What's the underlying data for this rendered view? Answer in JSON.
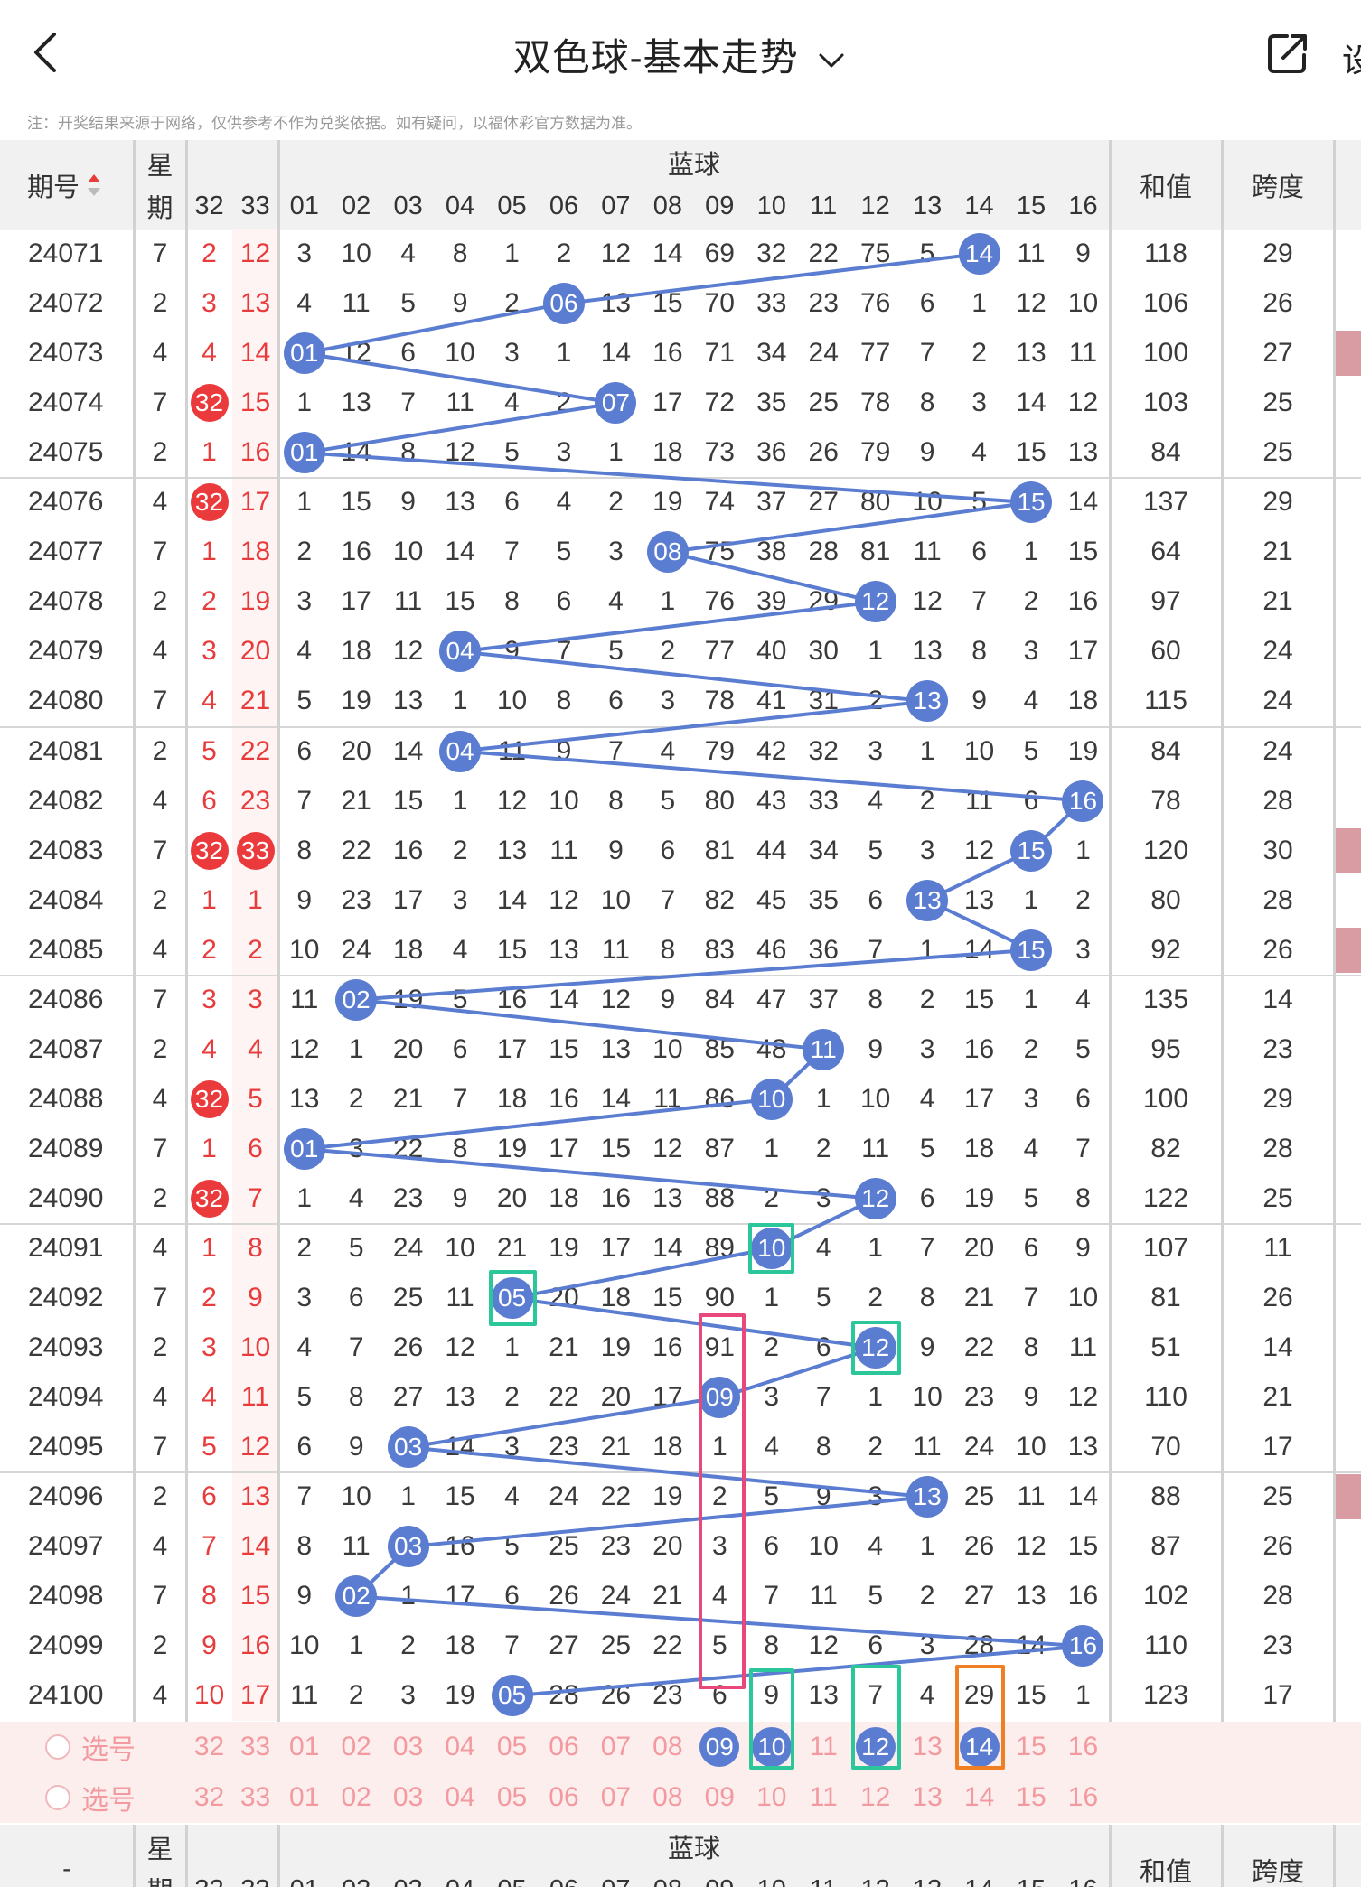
{
  "nav": {
    "title": "双色球-基本走势",
    "right_text": "设"
  },
  "note": "注：开奖结果来源于网络，仅供参考不作为兑奖依据。如有疑问，以福体彩官方数据为准。",
  "header": {
    "issue": "期号",
    "week_top": "星",
    "week_bottom": "期",
    "blue": "蓝球",
    "sum": "和值",
    "span": "跨度",
    "red_cols": [
      "32",
      "33"
    ],
    "blue_cols": [
      "01",
      "02",
      "03",
      "04",
      "05",
      "06",
      "07",
      "08",
      "09",
      "10",
      "11",
      "12",
      "13",
      "14",
      "15",
      "16"
    ]
  },
  "footer_header": {
    "issue": "-",
    "week_top": "星",
    "week_bottom": "期",
    "blue": "蓝球",
    "sum": "和值",
    "span": "跨度"
  },
  "select": {
    "label": "选号",
    "nums": [
      "32",
      "33",
      "01",
      "02",
      "03",
      "04",
      "05",
      "06",
      "07",
      "08",
      "09",
      "10",
      "11",
      "12",
      "13",
      "14",
      "15",
      "16"
    ]
  },
  "rows": [
    {
      "issue": "24071",
      "week": "7",
      "r32": "2",
      "r33": "12",
      "blue": 14,
      "cells": [
        "3",
        "10",
        "4",
        "8",
        "1",
        "2",
        "12",
        "14",
        "69",
        "32",
        "22",
        "75",
        "5",
        "14",
        "11",
        "9"
      ],
      "sum": "118",
      "span": "29"
    },
    {
      "issue": "24072",
      "week": "2",
      "r32": "3",
      "r33": "13",
      "blue": 6,
      "cells": [
        "4",
        "11",
        "5",
        "9",
        "2",
        "06",
        "13",
        "15",
        "70",
        "33",
        "23",
        "76",
        "6",
        "1",
        "12",
        "10"
      ],
      "sum": "106",
      "span": "26"
    },
    {
      "issue": "24073",
      "week": "4",
      "r32": "4",
      "r33": "14",
      "blue": 1,
      "cells": [
        "01",
        "12",
        "6",
        "10",
        "3",
        "1",
        "14",
        "16",
        "71",
        "34",
        "24",
        "77",
        "7",
        "2",
        "13",
        "11"
      ],
      "sum": "100",
      "span": "27"
    },
    {
      "issue": "24074",
      "week": "7",
      "r32": "32",
      "r33": "15",
      "blue": 7,
      "cells": [
        "1",
        "13",
        "7",
        "11",
        "4",
        "2",
        "07",
        "17",
        "72",
        "35",
        "25",
        "78",
        "8",
        "3",
        "14",
        "12"
      ],
      "sum": "103",
      "span": "25"
    },
    {
      "issue": "24075",
      "week": "2",
      "r32": "1",
      "r33": "16",
      "blue": 1,
      "cells": [
        "01",
        "14",
        "8",
        "12",
        "5",
        "3",
        "1",
        "18",
        "73",
        "36",
        "26",
        "79",
        "9",
        "4",
        "15",
        "13"
      ],
      "sum": "84",
      "span": "25"
    },
    {
      "issue": "24076",
      "week": "4",
      "r32": "32",
      "r33": "17",
      "blue": 15,
      "cells": [
        "1",
        "15",
        "9",
        "13",
        "6",
        "4",
        "2",
        "19",
        "74",
        "37",
        "27",
        "80",
        "10",
        "5",
        "15",
        "14"
      ],
      "sum": "137",
      "span": "29"
    },
    {
      "issue": "24077",
      "week": "7",
      "r32": "1",
      "r33": "18",
      "blue": 8,
      "cells": [
        "2",
        "16",
        "10",
        "14",
        "7",
        "5",
        "3",
        "08",
        "75",
        "38",
        "28",
        "81",
        "11",
        "6",
        "1",
        "15"
      ],
      "sum": "64",
      "span": "21"
    },
    {
      "issue": "24078",
      "week": "2",
      "r32": "2",
      "r33": "19",
      "blue": 12,
      "cells": [
        "3",
        "17",
        "11",
        "15",
        "8",
        "6",
        "4",
        "1",
        "76",
        "39",
        "29",
        "12",
        "12",
        "7",
        "2",
        "16"
      ],
      "sum": "97",
      "span": "21"
    },
    {
      "issue": "24079",
      "week": "4",
      "r32": "3",
      "r33": "20",
      "blue": 4,
      "cells": [
        "4",
        "18",
        "12",
        "04",
        "9",
        "7",
        "5",
        "2",
        "77",
        "40",
        "30",
        "1",
        "13",
        "8",
        "3",
        "17"
      ],
      "sum": "60",
      "span": "24"
    },
    {
      "issue": "24080",
      "week": "7",
      "r32": "4",
      "r33": "21",
      "blue": 13,
      "cells": [
        "5",
        "19",
        "13",
        "1",
        "10",
        "8",
        "6",
        "3",
        "78",
        "41",
        "31",
        "2",
        "13",
        "9",
        "4",
        "18"
      ],
      "sum": "115",
      "span": "24"
    },
    {
      "issue": "24081",
      "week": "2",
      "r32": "5",
      "r33": "22",
      "blue": 4,
      "cells": [
        "6",
        "20",
        "14",
        "04",
        "11",
        "9",
        "7",
        "4",
        "79",
        "42",
        "32",
        "3",
        "1",
        "10",
        "5",
        "19"
      ],
      "sum": "84",
      "span": "24"
    },
    {
      "issue": "24082",
      "week": "4",
      "r32": "6",
      "r33": "23",
      "blue": 16,
      "cells": [
        "7",
        "21",
        "15",
        "1",
        "12",
        "10",
        "8",
        "5",
        "80",
        "43",
        "33",
        "4",
        "2",
        "11",
        "6",
        "16"
      ],
      "sum": "78",
      "span": "28"
    },
    {
      "issue": "24083",
      "week": "7",
      "r32": "32",
      "r33": "33",
      "blue": 15,
      "cells": [
        "8",
        "22",
        "16",
        "2",
        "13",
        "11",
        "9",
        "6",
        "81",
        "44",
        "34",
        "5",
        "3",
        "12",
        "15",
        "1"
      ],
      "sum": "120",
      "span": "30"
    },
    {
      "issue": "24084",
      "week": "2",
      "r32": "1",
      "r33": "1",
      "blue": 13,
      "cells": [
        "9",
        "23",
        "17",
        "3",
        "14",
        "12",
        "10",
        "7",
        "82",
        "45",
        "35",
        "6",
        "13",
        "13",
        "1",
        "2"
      ],
      "sum": "80",
      "span": "28"
    },
    {
      "issue": "24085",
      "week": "4",
      "r32": "2",
      "r33": "2",
      "blue": 15,
      "cells": [
        "10",
        "24",
        "18",
        "4",
        "15",
        "13",
        "11",
        "8",
        "83",
        "46",
        "36",
        "7",
        "1",
        "14",
        "15",
        "3"
      ],
      "sum": "92",
      "span": "26"
    },
    {
      "issue": "24086",
      "week": "7",
      "r32": "3",
      "r33": "3",
      "blue": 2,
      "cells": [
        "11",
        "02",
        "19",
        "5",
        "16",
        "14",
        "12",
        "9",
        "84",
        "47",
        "37",
        "8",
        "2",
        "15",
        "1",
        "4"
      ],
      "sum": "135",
      "span": "14"
    },
    {
      "issue": "24087",
      "week": "2",
      "r32": "4",
      "r33": "4",
      "blue": 11,
      "cells": [
        "12",
        "1",
        "20",
        "6",
        "17",
        "15",
        "13",
        "10",
        "85",
        "48",
        "11",
        "9",
        "3",
        "16",
        "2",
        "5"
      ],
      "sum": "95",
      "span": "23"
    },
    {
      "issue": "24088",
      "week": "4",
      "r32": "32",
      "r33": "5",
      "blue": 10,
      "cells": [
        "13",
        "2",
        "21",
        "7",
        "18",
        "16",
        "14",
        "11",
        "86",
        "10",
        "1",
        "10",
        "4",
        "17",
        "3",
        "6"
      ],
      "sum": "100",
      "span": "29"
    },
    {
      "issue": "24089",
      "week": "7",
      "r32": "1",
      "r33": "6",
      "blue": 1,
      "cells": [
        "01",
        "3",
        "22",
        "8",
        "19",
        "17",
        "15",
        "12",
        "87",
        "1",
        "2",
        "11",
        "5",
        "18",
        "4",
        "7"
      ],
      "sum": "82",
      "span": "28"
    },
    {
      "issue": "24090",
      "week": "2",
      "r32": "32",
      "r33": "7",
      "blue": 12,
      "cells": [
        "1",
        "4",
        "23",
        "9",
        "20",
        "18",
        "16",
        "13",
        "88",
        "2",
        "3",
        "12",
        "6",
        "19",
        "5",
        "8"
      ],
      "sum": "122",
      "span": "25"
    },
    {
      "issue": "24091",
      "week": "4",
      "r32": "1",
      "r33": "8",
      "blue": 10,
      "cells": [
        "2",
        "5",
        "24",
        "10",
        "21",
        "19",
        "17",
        "14",
        "89",
        "10",
        "4",
        "1",
        "7",
        "20",
        "6",
        "9"
      ],
      "sum": "107",
      "span": "11"
    },
    {
      "issue": "24092",
      "week": "7",
      "r32": "2",
      "r33": "9",
      "blue": 5,
      "cells": [
        "3",
        "6",
        "25",
        "11",
        "05",
        "20",
        "18",
        "15",
        "90",
        "1",
        "5",
        "2",
        "8",
        "21",
        "7",
        "10"
      ],
      "sum": "81",
      "span": "26"
    },
    {
      "issue": "24093",
      "week": "2",
      "r32": "3",
      "r33": "10",
      "blue": 12,
      "cells": [
        "4",
        "7",
        "26",
        "12",
        "1",
        "21",
        "19",
        "16",
        "91",
        "2",
        "6",
        "12",
        "9",
        "22",
        "8",
        "11"
      ],
      "sum": "51",
      "span": "14"
    },
    {
      "issue": "24094",
      "week": "4",
      "r32": "4",
      "r33": "11",
      "blue": 9,
      "cells": [
        "5",
        "8",
        "27",
        "13",
        "2",
        "22",
        "20",
        "17",
        "09",
        "3",
        "7",
        "1",
        "10",
        "23",
        "9",
        "12"
      ],
      "sum": "110",
      "span": "21"
    },
    {
      "issue": "24095",
      "week": "7",
      "r32": "5",
      "r33": "12",
      "blue": 3,
      "cells": [
        "6",
        "9",
        "03",
        "14",
        "3",
        "23",
        "21",
        "18",
        "1",
        "4",
        "8",
        "2",
        "11",
        "24",
        "10",
        "13"
      ],
      "sum": "70",
      "span": "17"
    },
    {
      "issue": "24096",
      "week": "2",
      "r32": "6",
      "r33": "13",
      "blue": 13,
      "cells": [
        "7",
        "10",
        "1",
        "15",
        "4",
        "24",
        "22",
        "19",
        "2",
        "5",
        "9",
        "3",
        "13",
        "25",
        "11",
        "14"
      ],
      "sum": "88",
      "span": "25"
    },
    {
      "issue": "24097",
      "week": "4",
      "r32": "7",
      "r33": "14",
      "blue": 3,
      "cells": [
        "8",
        "11",
        "03",
        "16",
        "5",
        "25",
        "23",
        "20",
        "3",
        "6",
        "10",
        "4",
        "1",
        "26",
        "12",
        "15"
      ],
      "sum": "87",
      "span": "26"
    },
    {
      "issue": "24098",
      "week": "7",
      "r32": "8",
      "r33": "15",
      "blue": 2,
      "cells": [
        "9",
        "02",
        "1",
        "17",
        "6",
        "26",
        "24",
        "21",
        "4",
        "7",
        "11",
        "5",
        "2",
        "27",
        "13",
        "16"
      ],
      "sum": "102",
      "span": "28"
    },
    {
      "issue": "24099",
      "week": "2",
      "r32": "9",
      "r33": "16",
      "blue": 16,
      "cells": [
        "10",
        "1",
        "2",
        "18",
        "7",
        "27",
        "25",
        "22",
        "5",
        "8",
        "12",
        "6",
        "3",
        "28",
        "14",
        "16"
      ],
      "sum": "110",
      "span": "23"
    },
    {
      "issue": "24100",
      "week": "4",
      "r32": "10",
      "r33": "17",
      "blue": 5,
      "cells": [
        "11",
        "2",
        "3",
        "19",
        "05",
        "28",
        "26",
        "23",
        "6",
        "9",
        "13",
        "7",
        "4",
        "29",
        "15",
        "1"
      ],
      "sum": "123",
      "span": "17"
    }
  ],
  "selected_row": [
    "09",
    "10",
    "12",
    "14"
  ],
  "colors": {
    "blue_ball": "#5b7dd1",
    "red_ball": "#ea3a3c",
    "red_text": "#e83b3b",
    "green_box": "#2bc79a",
    "pink_box": "#e8487a",
    "orange_box": "#ef7f22",
    "select_bg": "#fdeeee"
  }
}
